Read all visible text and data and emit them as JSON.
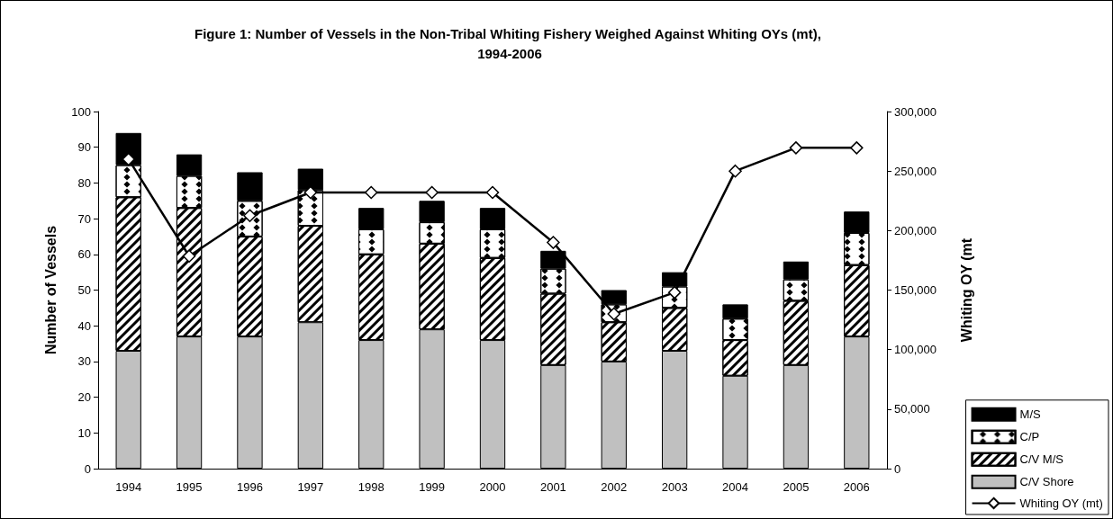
{
  "chart_data": {
    "type": "bar",
    "title": "Figure 1: Number of Vessels in the Non-Tribal Whiting Fishery Weighed Against Whiting OYs (mt), 1994-2006",
    "ylabel": "Number of Vessels",
    "y2label": "Whiting OY (mt",
    "categories": [
      "1994",
      "1995",
      "1996",
      "1997",
      "1998",
      "1999",
      "2000",
      "2001",
      "2002",
      "2003",
      "2004",
      "2005",
      "2006"
    ],
    "stacked": true,
    "series": [
      {
        "name": "C/V Shore",
        "color": "#c0c0c0",
        "values": [
          33,
          37,
          37,
          41,
          36,
          39,
          36,
          29,
          30,
          33,
          26,
          29,
          37
        ]
      },
      {
        "name": "C/V M/S",
        "color": "#ffffff",
        "values": [
          43,
          36,
          28,
          27,
          24,
          24,
          23,
          20,
          11,
          12,
          10,
          18,
          20
        ]
      },
      {
        "name": "C/P",
        "color": "#ffffff",
        "values": [
          9,
          9,
          10,
          10,
          7,
          6,
          8,
          7,
          5,
          6,
          6,
          6,
          9
        ]
      },
      {
        "name": "M/S",
        "color": "#000000",
        "values": [
          9,
          6,
          8,
          6,
          6,
          6,
          6,
          5,
          4,
          4,
          4,
          5,
          6
        ]
      },
      {
        "name": "Whiting OY (mt)",
        "type": "line",
        "axis": "y2",
        "color": "#000000",
        "marker": "diamond",
        "values": [
          260000,
          178500,
          212500,
          232000,
          232000,
          232000,
          232000,
          190000,
          130000,
          148000,
          250000,
          269500,
          269500
        ]
      }
    ],
    "ylim": [
      0,
      100
    ],
    "yticks": [
      0,
      10,
      20,
      30,
      40,
      50,
      60,
      70,
      80,
      90,
      100
    ],
    "y2lim": [
      0,
      300000
    ],
    "y2ticks": [
      0,
      {
        "value": 50000,
        "label": "50,000"
      },
      {
        "value": 100000,
        "label": "100,000"
      },
      {
        "value": 150000,
        "label": "150,000"
      },
      {
        "value": 200000,
        "label": "200,000"
      },
      {
        "value": 250000,
        "label": "250,000"
      },
      {
        "value": 300000,
        "label": "300,000"
      }
    ],
    "legend": "bottom right",
    "grid": false
  }
}
